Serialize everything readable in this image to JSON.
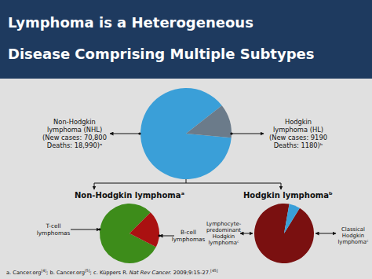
{
  "chart_data": [
    {
      "type": "pie",
      "title": "Lymphoma is a Heterogeneous\nDisease Comprising Multiple Subtypes",
      "values": [
        88,
        12
      ],
      "colors": [
        "#3a9fd8",
        "#6b7b8a"
      ],
      "annotations": [
        "Non-Hodgkin\nlymphoma (NHL)\n(New cases: 70,800\nDeaths: 18,990)ᵃ",
        "Hodgkin\nlymphoma (HL)\n(New cases: 9190\nDeaths: 1180)ᵇ"
      ],
      "footnote": [
        "a. Cancer.org",
        "[4]",
        "; b. Cancer.org",
        "[5]",
        "; c. Küppers R. ",
        "Nat Rev Cancer.",
        " 2009;9:15-27.",
        "[45]"
      ]
    },
    {
      "type": "pie",
      "title": "Non-Hodgkin lymphomaᵃ",
      "values": [
        80,
        20
      ],
      "colors": [
        "#3d8c1a",
        "#aa1111"
      ],
      "annotations": [
        "T-cell\nlymphomas",
        "B-cell\nlymphomas"
      ]
    },
    {
      "type": "pie",
      "title": "Hodgkin lymphomaᵇ",
      "values": [
        94,
        6
      ],
      "colors": [
        "#7a1010",
        "#3a9fd8"
      ],
      "annotations": [
        "Lymphocyte-\npredominant\nHodgkin\nlymphomaᶜ",
        "Classical\nHodgkin\nlymphomaᶜ"
      ]
    }
  ]
}
